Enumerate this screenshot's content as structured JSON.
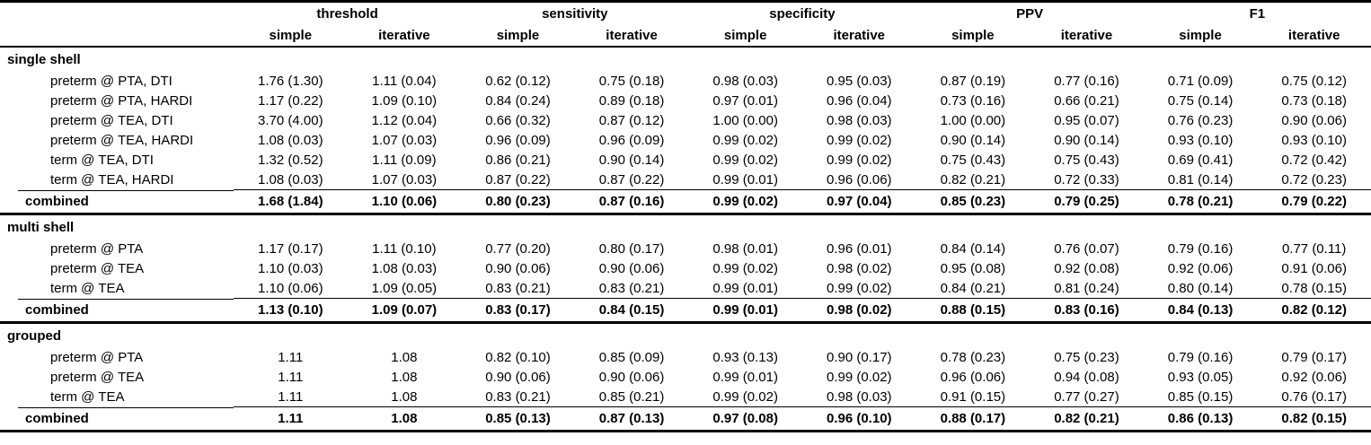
{
  "table": {
    "text_color": "#000000",
    "background_color": "#ffffff",
    "column_groups": [
      "threshold",
      "sensitivity",
      "specificity",
      "PPV",
      "F1"
    ],
    "sub_columns": [
      "simple",
      "iterative"
    ],
    "sections": [
      {
        "name": "single shell",
        "rows": [
          {
            "label": "preterm @ PTA, DTI",
            "combined": false,
            "values": [
              "1.76 (1.30)",
              "1.11 (0.04)",
              "0.62 (0.12)",
              "0.75 (0.18)",
              "0.98 (0.03)",
              "0.95 (0.03)",
              "0.87 (0.19)",
              "0.77 (0.16)",
              "0.71 (0.09)",
              "0.75 (0.12)"
            ]
          },
          {
            "label": "preterm @ PTA, HARDI",
            "combined": false,
            "values": [
              "1.17 (0.22)",
              "1.09 (0.10)",
              "0.84 (0.24)",
              "0.89 (0.18)",
              "0.97 (0.01)",
              "0.96 (0.04)",
              "0.73 (0.16)",
              "0.66 (0.21)",
              "0.75 (0.14)",
              "0.73 (0.18)"
            ]
          },
          {
            "label": "preterm @ TEA, DTI",
            "combined": false,
            "values": [
              "3.70 (4.00)",
              "1.12 (0.04)",
              "0.66 (0.32)",
              "0.87 (0.12)",
              "1.00 (0.00)",
              "0.98 (0.03)",
              "1.00 (0.00)",
              "0.95 (0.07)",
              "0.76 (0.23)",
              "0.90 (0.06)"
            ]
          },
          {
            "label": "preterm @ TEA, HARDI",
            "combined": false,
            "values": [
              "1.08 (0.03)",
              "1.07 (0.03)",
              "0.96 (0.09)",
              "0.96 (0.09)",
              "0.99 (0.02)",
              "0.99 (0.02)",
              "0.90 (0.14)",
              "0.90 (0.14)",
              "0.93 (0.10)",
              "0.93 (0.10)"
            ]
          },
          {
            "label": "term @ TEA, DTI",
            "combined": false,
            "values": [
              "1.32 (0.52)",
              "1.11 (0.09)",
              "0.86 (0.21)",
              "0.90 (0.14)",
              "0.99 (0.02)",
              "0.99 (0.02)",
              "0.75 (0.43)",
              "0.75 (0.43)",
              "0.69 (0.41)",
              "0.72 (0.42)"
            ]
          },
          {
            "label": "term @ TEA, HARDI",
            "combined": false,
            "values": [
              "1.08 (0.03)",
              "1.07 (0.03)",
              "0.87 (0.22)",
              "0.87 (0.22)",
              "0.99 (0.01)",
              "0.96 (0.06)",
              "0.82 (0.21)",
              "0.72 (0.33)",
              "0.81 (0.14)",
              "0.72 (0.23)"
            ]
          },
          {
            "label": "combined",
            "combined": true,
            "values": [
              "1.68 (1.84)",
              "1.10 (0.06)",
              "0.80 (0.23)",
              "0.87 (0.16)",
              "0.99 (0.02)",
              "0.97 (0.04)",
              "0.85 (0.23)",
              "0.79 (0.25)",
              "0.78 (0.21)",
              "0.79 (0.22)"
            ]
          }
        ]
      },
      {
        "name": "multi shell",
        "rows": [
          {
            "label": "preterm @ PTA",
            "combined": false,
            "values": [
              "1.17 (0.17)",
              "1.11 (0.10)",
              "0.77 (0.20)",
              "0.80 (0.17)",
              "0.98 (0.01)",
              "0.96 (0.01)",
              "0.84 (0.14)",
              "0.76 (0.07)",
              "0.79 (0.16)",
              "0.77 (0.11)"
            ]
          },
          {
            "label": "preterm @ TEA",
            "combined": false,
            "values": [
              "1.10 (0.03)",
              "1.08 (0.03)",
              "0.90 (0.06)",
              "0.90 (0.06)",
              "0.99 (0.02)",
              "0.98 (0.02)",
              "0.95 (0.08)",
              "0.92 (0.08)",
              "0.92 (0.06)",
              "0.91 (0.06)"
            ]
          },
          {
            "label": "term @ TEA",
            "combined": false,
            "values": [
              "1.10 (0.06)",
              "1.09 (0.05)",
              "0.83 (0.21)",
              "0.83 (0.21)",
              "0.99 (0.01)",
              "0.99 (0.02)",
              "0.84 (0.21)",
              "0.81 (0.24)",
              "0.80 (0.14)",
              "0.78 (0.15)"
            ]
          },
          {
            "label": "combined",
            "combined": true,
            "values": [
              "1.13 (0.10)",
              "1.09 (0.07)",
              "0.83 (0.17)",
              "0.84 (0.15)",
              "0.99 (0.01)",
              "0.98 (0.02)",
              "0.88 (0.15)",
              "0.83 (0.16)",
              "0.84 (0.13)",
              "0.82 (0.12)"
            ]
          }
        ]
      },
      {
        "name": "grouped",
        "rows": [
          {
            "label": "preterm @ PTA",
            "combined": false,
            "values": [
              "1.11",
              "1.08",
              "0.82 (0.10)",
              "0.85 (0.09)",
              "0.93 (0.13)",
              "0.90 (0.17)",
              "0.78 (0.23)",
              "0.75 (0.23)",
              "0.79 (0.16)",
              "0.79 (0.17)"
            ]
          },
          {
            "label": "preterm @ TEA",
            "combined": false,
            "values": [
              "1.11",
              "1.08",
              "0.90 (0.06)",
              "0.90 (0.06)",
              "0.99 (0.01)",
              "0.99 (0.02)",
              "0.96 (0.06)",
              "0.94 (0.08)",
              "0.93 (0.05)",
              "0.92 (0.06)"
            ]
          },
          {
            "label": "term @ TEA",
            "combined": false,
            "values": [
              "1.11",
              "1.08",
              "0.83 (0.21)",
              "0.85 (0.21)",
              "0.99 (0.02)",
              "0.98 (0.03)",
              "0.91 (0.15)",
              "0.77 (0.27)",
              "0.85 (0.15)",
              "0.76 (0.17)"
            ]
          },
          {
            "label": "combined",
            "combined": true,
            "values": [
              "1.11",
              "1.08",
              "0.85 (0.13)",
              "0.87 (0.13)",
              "0.97 (0.08)",
              "0.96 (0.10)",
              "0.88 (0.17)",
              "0.82 (0.21)",
              "0.86 (0.13)",
              "0.82 (0.15)"
            ]
          }
        ]
      }
    ]
  }
}
